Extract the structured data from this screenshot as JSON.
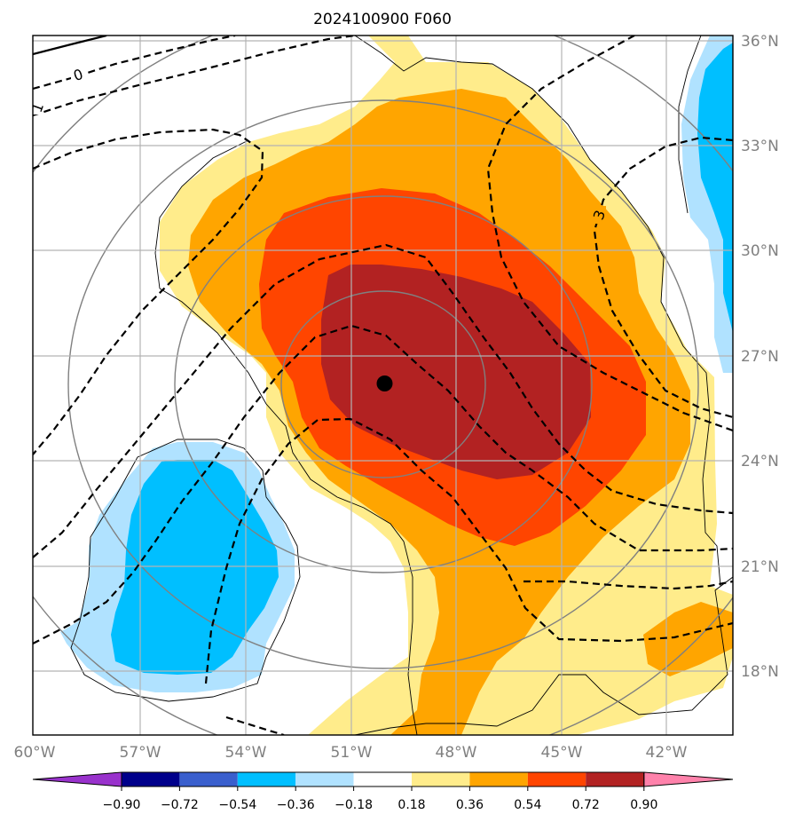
{
  "title": "2024100900 F060",
  "map": {
    "lat_labels": [
      "36°N",
      "33°N",
      "30°N",
      "27°N",
      "24°N",
      "21°N",
      "18°N"
    ],
    "lon_labels": [
      "60°W",
      "57°W",
      "54°W",
      "51°W",
      "48°W",
      "45°W",
      "42°W"
    ],
    "contour_labels": [
      "0",
      "1",
      "3"
    ],
    "storm_center": {
      "lat": 26.2,
      "lon": -50.0
    }
  },
  "colorbar": {
    "colors": [
      "#9932cc",
      "#00008b",
      "#3a5fcd",
      "#00bfff",
      "#b0e2ff",
      "#ffffff",
      "#ffec8b",
      "#ffa500",
      "#ff4500",
      "#b22222",
      "#ff82ab"
    ],
    "ticks": [
      "−0.90",
      "−0.72",
      "−0.54",
      "−0.36",
      "−0.18",
      "0.18",
      "0.36",
      "0.54",
      "0.72",
      "0.90"
    ]
  }
}
